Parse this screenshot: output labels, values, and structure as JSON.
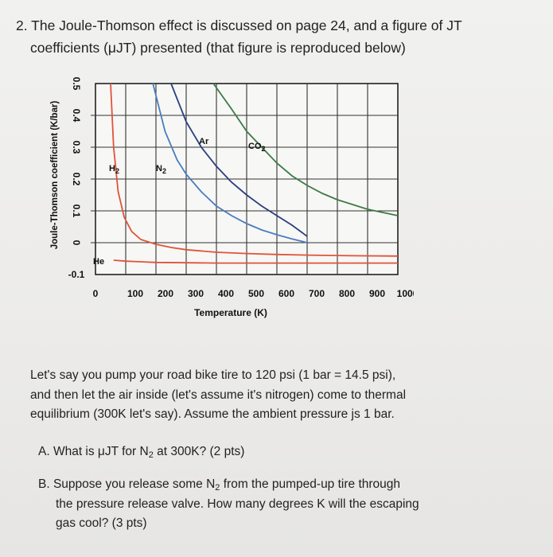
{
  "question": {
    "number": "2.",
    "text_line1": "The Joule-Thomson effect is discussed on page 24, and a figure of JT",
    "text_line2": "coefficients (μJT) presented (that figure is reproduced below)"
  },
  "chart_data": {
    "type": "line",
    "ylabel": "Joule-Thomson coefficient (K/bar)",
    "xlabel": "Temperature (K)",
    "xlim": [
      0,
      1000
    ],
    "ylim": [
      -0.1,
      0.5
    ],
    "x_ticks": [
      "0",
      "100",
      "200",
      "300",
      "400",
      "500",
      "600",
      "700",
      "800",
      "900",
      "1000"
    ],
    "y_ticks": [
      "0.5",
      "0.4",
      "0.3",
      "0.2",
      "0.1",
      "0",
      "-0.1"
    ],
    "grid": true,
    "series": [
      {
        "name": "H2",
        "label": "H",
        "label_sub": "2",
        "color": "#e0533a",
        "x": [
          50,
          60,
          75,
          95,
          120,
          150,
          200,
          250,
          300,
          400,
          500,
          600,
          700,
          850,
          1000
        ],
        "y": [
          0.5,
          0.3,
          0.16,
          0.08,
          0.035,
          0.01,
          -0.005,
          -0.015,
          -0.022,
          -0.03,
          -0.034,
          -0.037,
          -0.039,
          -0.041,
          -0.042
        ]
      },
      {
        "name": "N2",
        "label": "N",
        "label_sub": "2",
        "color": "#4a7cc0",
        "x": [
          190,
          230,
          270,
          300,
          350,
          400,
          450,
          500,
          550,
          600,
          650,
          700
        ],
        "y": [
          0.5,
          0.35,
          0.26,
          0.215,
          0.16,
          0.115,
          0.085,
          0.06,
          0.04,
          0.025,
          0.012,
          0.0
        ]
      },
      {
        "name": "Ar",
        "label": "Ar",
        "label_sub": "",
        "color": "#2a3f7e",
        "x": [
          250,
          300,
          350,
          400,
          450,
          500,
          550,
          600,
          650,
          700
        ],
        "y": [
          0.5,
          0.38,
          0.3,
          0.24,
          0.19,
          0.15,
          0.115,
          0.085,
          0.055,
          0.02
        ]
      },
      {
        "name": "CO2",
        "label": "CO",
        "label_sub": "2",
        "color": "#3e7a48",
        "x": [
          390,
          450,
          500,
          550,
          600,
          650,
          700,
          750,
          800,
          850,
          900,
          950,
          1000
        ],
        "y": [
          0.5,
          0.42,
          0.35,
          0.3,
          0.25,
          0.21,
          0.18,
          0.155,
          0.135,
          0.12,
          0.105,
          0.095,
          0.085
        ]
      },
      {
        "name": "He",
        "label": "He",
        "label_sub": "",
        "color": "#e0533a",
        "x": [
          60,
          100,
          150,
          200,
          300,
          400,
          500,
          600,
          700,
          800,
          1000
        ],
        "y": [
          -0.055,
          -0.058,
          -0.06,
          -0.062,
          -0.063,
          -0.064,
          -0.064,
          -0.064,
          -0.064,
          -0.064,
          -0.064
        ]
      }
    ]
  },
  "body": {
    "line1": "Let's say you pump your road bike tire to 120 psi (1 bar = 14.5 psi),",
    "line2": "and then let the air inside (let's assume it's nitrogen) come to thermal",
    "line3": "equilibrium (300K let's say). Assume the ambient pressure js 1 bar."
  },
  "part_a": {
    "prefix": "A. What is μJT for N",
    "sub": "2",
    "suffix": " at 300K? (2 pts)"
  },
  "part_b": {
    "prefix": "B. Suppose you release some N",
    "sub": "2",
    "suffix": " from the pumped-up tire through",
    "line2": "the pressure release valve.  How many degrees K will the escaping",
    "line3": "gas cool? (3 pts)"
  }
}
